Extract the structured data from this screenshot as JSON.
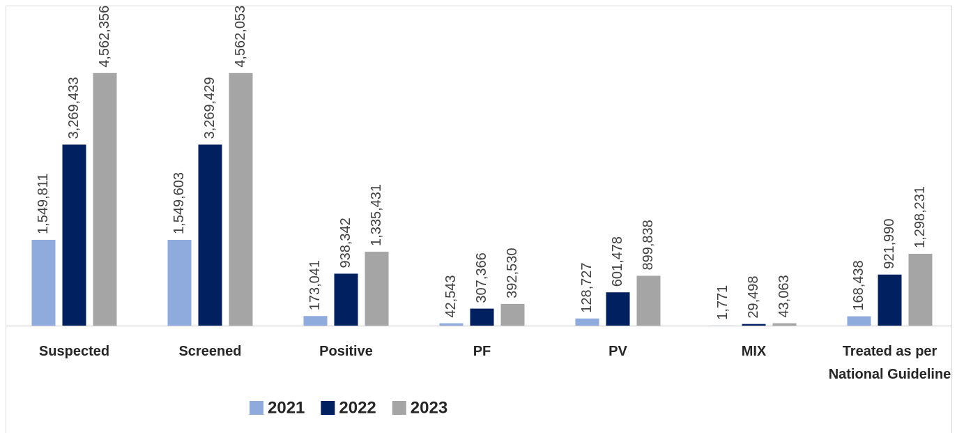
{
  "chart_data": {
    "type": "bar",
    "categories": [
      "Suspected",
      "Screened",
      "Positive",
      "PF",
      "PV",
      "MIX",
      "Treated as per National Guideline"
    ],
    "series": [
      {
        "name": "2021",
        "color": "#8faadc",
        "values": [
          1549811,
          1549603,
          173041,
          42543,
          128727,
          1771,
          168438
        ],
        "value_labels": [
          "1,549,811",
          "1,549,603",
          "173,041",
          "42,543",
          "128,727",
          "1,771",
          "168,438"
        ]
      },
      {
        "name": "2022",
        "color": "#002060",
        "values": [
          3269433,
          3269429,
          938342,
          307366,
          601478,
          29498,
          921990
        ],
        "value_labels": [
          "3,269,433",
          "3,269,429",
          "938,342",
          "307,366",
          "601,478",
          "29,498",
          "921,990"
        ]
      },
      {
        "name": "2023",
        "color": "#a5a5a5",
        "values": [
          4562356,
          4562053,
          1335431,
          392530,
          899838,
          43063,
          1298231
        ],
        "value_labels": [
          "4,562,356",
          "4,562,053",
          "1,335,431",
          "392,530",
          "899,838",
          "43,063",
          "1,298,231"
        ]
      }
    ],
    "ylim": [
      0,
      5000000
    ],
    "legend": "bottom"
  }
}
